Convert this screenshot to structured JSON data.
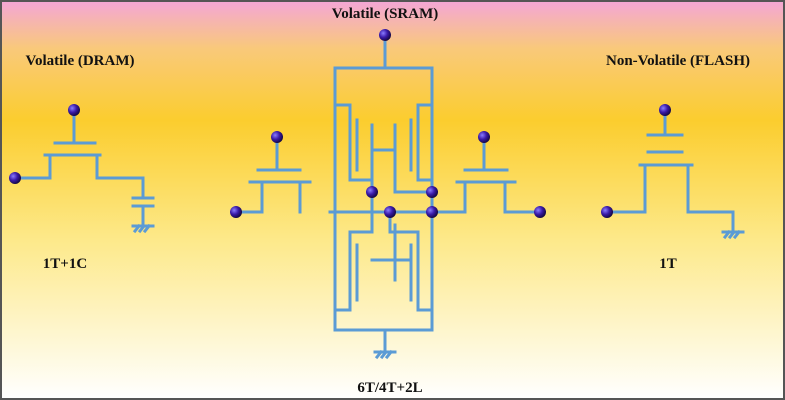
{
  "dram": {
    "title": "Volatile (DRAM)",
    "label": "1T+1C"
  },
  "sram": {
    "title": "Volatile (SRAM)",
    "label": "6T/4T+2L"
  },
  "flash": {
    "title": "Non-Volatile (FLASH)",
    "label": "1T"
  }
}
